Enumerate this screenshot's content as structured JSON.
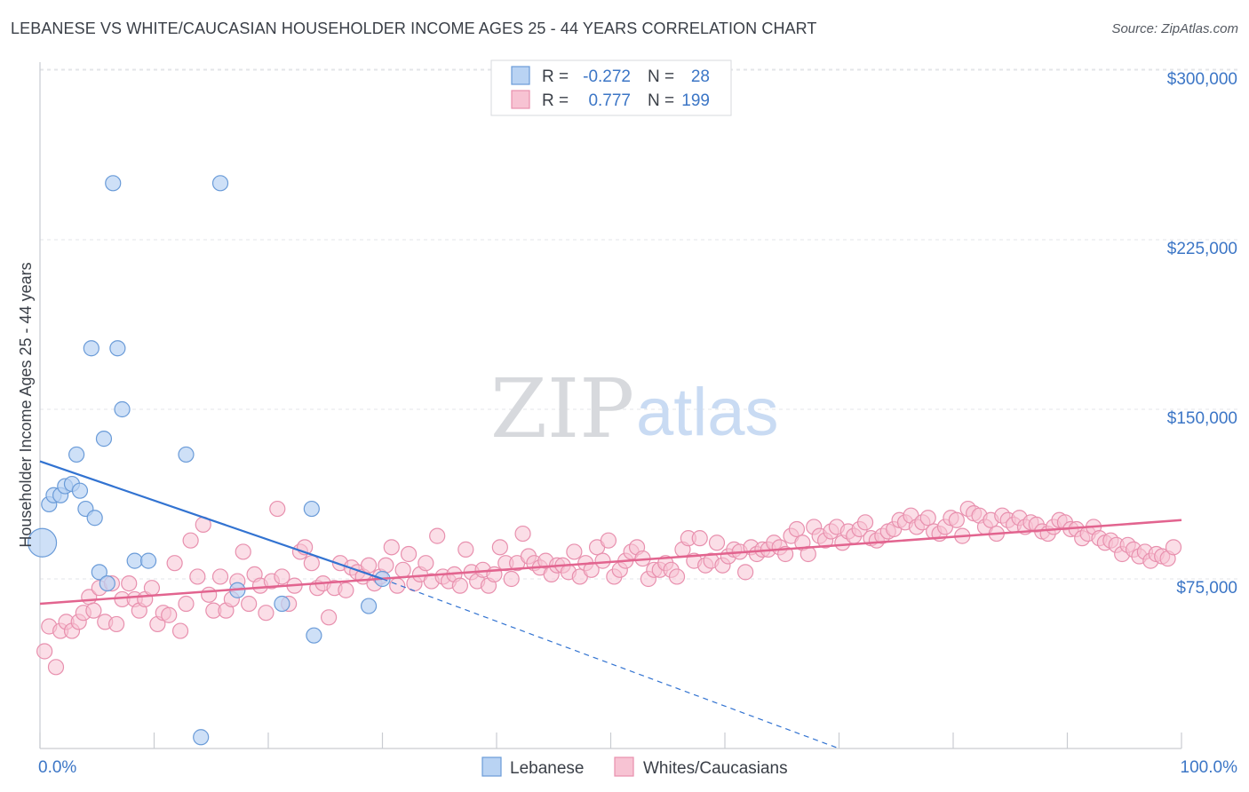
{
  "title": "LEBANESE VS WHITE/CAUCASIAN HOUSEHOLDER INCOME AGES 25 - 44 YEARS CORRELATION CHART",
  "source": "Source: ZipAtlas.com",
  "watermark": {
    "part1": "ZIP",
    "part2": "atlas"
  },
  "legend": {
    "row1": {
      "r_label": "R =",
      "r_value": "-0.272",
      "n_label": "N =",
      "n_value": "28"
    },
    "row2": {
      "r_label": "R =",
      "r_value": "0.777",
      "n_label": "N =",
      "n_value": "199"
    }
  },
  "bottom_legend": {
    "series1": "Lebanese",
    "series2": "Whites/Caucasians"
  },
  "colors": {
    "lebanese_fill": "#b9d3f3",
    "lebanese_stroke": "#6a9bd8",
    "lebanese_line": "#3273d1",
    "white_fill": "#f7c3d3",
    "white_stroke": "#e890ae",
    "white_line": "#e2648f",
    "tick_text": "#3c76c6",
    "grid": "#e3e5e8"
  },
  "chart_data": {
    "type": "scatter",
    "title": "LEBANESE VS WHITE/CAUCASIAN HOUSEHOLDER INCOME AGES 25 - 44 YEARS CORRELATION CHART",
    "xlabel": "",
    "ylabel": "Householder Income Ages 25 - 44 years",
    "xlim": [
      0,
      100
    ],
    "ylim": [
      0,
      300000
    ],
    "x_tick_labels": [
      "0.0%",
      "100.0%"
    ],
    "y_tick_labels": [
      "$75,000",
      "$150,000",
      "$225,000",
      "$300,000"
    ],
    "y_tick_values": [
      75000,
      150000,
      225000,
      300000
    ],
    "grid": true,
    "legend_position": "top-center",
    "series": [
      {
        "name": "Lebanese",
        "r": -0.272,
        "n": 28,
        "trend": {
          "x": [
            0,
            30
          ],
          "y": [
            127000,
            75000
          ]
        },
        "trend_extension": {
          "x": [
            30,
            70
          ],
          "y": [
            75000,
            0
          ]
        },
        "points": [
          [
            0.2,
            91000,
            14
          ],
          [
            0.8,
            108000,
            8
          ],
          [
            1.2,
            112000,
            8
          ],
          [
            1.8,
            112000,
            8
          ],
          [
            2.2,
            116000,
            8
          ],
          [
            2.8,
            117000,
            8
          ],
          [
            3.2,
            130000,
            8
          ],
          [
            3.5,
            114000,
            8
          ],
          [
            4.0,
            106000,
            8
          ],
          [
            4.5,
            177000,
            8
          ],
          [
            4.8,
            102000,
            8
          ],
          [
            5.2,
            78000,
            8
          ],
          [
            5.6,
            137000,
            8
          ],
          [
            5.9,
            73000,
            8
          ],
          [
            6.4,
            250000,
            8
          ],
          [
            6.8,
            177000,
            8
          ],
          [
            7.2,
            150000,
            8
          ],
          [
            8.3,
            83000,
            8
          ],
          [
            9.5,
            83000,
            8
          ],
          [
            12.8,
            130000,
            8
          ],
          [
            14.1,
            5000,
            8
          ],
          [
            15.8,
            250000,
            8
          ],
          [
            17.3,
            70000,
            8
          ],
          [
            21.2,
            64000,
            8
          ],
          [
            23.8,
            106000,
            8
          ],
          [
            24.0,
            50000,
            8
          ],
          [
            28.8,
            63000,
            8
          ],
          [
            30.0,
            75000,
            8
          ]
        ]
      },
      {
        "name": "Whites/Caucasians",
        "r": 0.777,
        "n": 199,
        "trend": {
          "x": [
            0,
            100
          ],
          "y": [
            64000,
            101000
          ]
        },
        "points": [
          [
            0.4,
            43000
          ],
          [
            0.8,
            54000
          ],
          [
            1.4,
            36000
          ],
          [
            1.8,
            52000
          ],
          [
            2.3,
            56000
          ],
          [
            2.8,
            52000
          ],
          [
            3.4,
            56000
          ],
          [
            3.8,
            60000
          ],
          [
            4.3,
            67000
          ],
          [
            4.7,
            61000
          ],
          [
            5.2,
            71000
          ],
          [
            5.7,
            56000
          ],
          [
            6.3,
            73000
          ],
          [
            6.7,
            55000
          ],
          [
            7.2,
            66000
          ],
          [
            7.8,
            73000
          ],
          [
            8.3,
            66000
          ],
          [
            8.7,
            61000
          ],
          [
            9.2,
            66000
          ],
          [
            9.8,
            71000
          ],
          [
            10.3,
            55000
          ],
          [
            10.8,
            60000
          ],
          [
            11.3,
            59000
          ],
          [
            11.8,
            82000
          ],
          [
            12.3,
            52000
          ],
          [
            12.8,
            64000
          ],
          [
            13.2,
            92000
          ],
          [
            13.8,
            76000
          ],
          [
            14.3,
            99000
          ],
          [
            14.8,
            68000
          ],
          [
            15.2,
            61000
          ],
          [
            15.8,
            76000
          ],
          [
            16.3,
            61000
          ],
          [
            16.8,
            66000
          ],
          [
            17.3,
            74000
          ],
          [
            17.8,
            87000
          ],
          [
            18.3,
            64000
          ],
          [
            18.8,
            77000
          ],
          [
            19.3,
            72000
          ],
          [
            19.8,
            60000
          ],
          [
            20.3,
            74000
          ],
          [
            20.8,
            106000
          ],
          [
            21.2,
            76000
          ],
          [
            21.8,
            64000
          ],
          [
            22.3,
            72000
          ],
          [
            22.8,
            87000
          ],
          [
            23.2,
            89000
          ],
          [
            23.8,
            82000
          ],
          [
            24.3,
            71000
          ],
          [
            24.8,
            73000
          ],
          [
            25.3,
            58000
          ],
          [
            25.8,
            71000
          ],
          [
            26.3,
            82000
          ],
          [
            26.8,
            70000
          ],
          [
            27.3,
            80000
          ],
          [
            27.8,
            78000
          ],
          [
            28.3,
            76000
          ],
          [
            28.8,
            81000
          ],
          [
            29.3,
            73000
          ],
          [
            29.8,
            76000
          ],
          [
            30.3,
            81000
          ],
          [
            30.8,
            89000
          ],
          [
            31.3,
            72000
          ],
          [
            31.8,
            79000
          ],
          [
            32.3,
            86000
          ],
          [
            32.8,
            73000
          ],
          [
            33.3,
            77000
          ],
          [
            33.8,
            82000
          ],
          [
            34.3,
            74000
          ],
          [
            34.8,
            94000
          ],
          [
            35.3,
            76000
          ],
          [
            35.8,
            74000
          ],
          [
            36.3,
            77000
          ],
          [
            36.8,
            72000
          ],
          [
            37.3,
            88000
          ],
          [
            37.8,
            78000
          ],
          [
            38.3,
            74000
          ],
          [
            38.8,
            79000
          ],
          [
            39.3,
            72000
          ],
          [
            39.8,
            77000
          ],
          [
            40.3,
            89000
          ],
          [
            40.8,
            82000
          ],
          [
            41.3,
            75000
          ],
          [
            41.8,
            82000
          ],
          [
            42.3,
            95000
          ],
          [
            42.8,
            85000
          ],
          [
            43.3,
            82000
          ],
          [
            43.8,
            80000
          ],
          [
            44.3,
            83000
          ],
          [
            44.8,
            77000
          ],
          [
            45.3,
            81000
          ],
          [
            45.8,
            81000
          ],
          [
            46.3,
            78000
          ],
          [
            46.8,
            87000
          ],
          [
            47.3,
            76000
          ],
          [
            47.8,
            82000
          ],
          [
            48.3,
            79000
          ],
          [
            48.8,
            89000
          ],
          [
            49.3,
            83000
          ],
          [
            49.8,
            92000
          ],
          [
            50.3,
            76000
          ],
          [
            50.8,
            79000
          ],
          [
            51.3,
            83000
          ],
          [
            51.8,
            87000
          ],
          [
            52.3,
            89000
          ],
          [
            52.8,
            84000
          ],
          [
            53.3,
            75000
          ],
          [
            53.8,
            79000
          ],
          [
            54.3,
            79000
          ],
          [
            54.8,
            82000
          ],
          [
            55.3,
            79000
          ],
          [
            55.8,
            76000
          ],
          [
            56.3,
            88000
          ],
          [
            56.8,
            93000
          ],
          [
            57.3,
            83000
          ],
          [
            57.8,
            93000
          ],
          [
            58.3,
            81000
          ],
          [
            58.8,
            83000
          ],
          [
            59.3,
            91000
          ],
          [
            59.8,
            81000
          ],
          [
            60.3,
            85000
          ],
          [
            60.8,
            88000
          ],
          [
            61.3,
            87000
          ],
          [
            61.8,
            78000
          ],
          [
            62.3,
            89000
          ],
          [
            62.8,
            86000
          ],
          [
            63.3,
            88000
          ],
          [
            63.8,
            88000
          ],
          [
            64.3,
            91000
          ],
          [
            64.8,
            89000
          ],
          [
            65.3,
            86000
          ],
          [
            65.8,
            94000
          ],
          [
            66.3,
            97000
          ],
          [
            66.8,
            91000
          ],
          [
            67.3,
            86000
          ],
          [
            67.8,
            98000
          ],
          [
            68.3,
            94000
          ],
          [
            68.8,
            92000
          ],
          [
            69.3,
            96000
          ],
          [
            69.8,
            98000
          ],
          [
            70.3,
            91000
          ],
          [
            70.8,
            96000
          ],
          [
            71.3,
            94000
          ],
          [
            71.8,
            97000
          ],
          [
            72.3,
            100000
          ],
          [
            72.8,
            93000
          ],
          [
            73.3,
            92000
          ],
          [
            73.8,
            94000
          ],
          [
            74.3,
            96000
          ],
          [
            74.8,
            97000
          ],
          [
            75.3,
            101000
          ],
          [
            75.8,
            100000
          ],
          [
            76.3,
            103000
          ],
          [
            76.8,
            98000
          ],
          [
            77.3,
            100000
          ],
          [
            77.8,
            102000
          ],
          [
            78.3,
            96000
          ],
          [
            78.8,
            95000
          ],
          [
            79.3,
            98000
          ],
          [
            79.8,
            102000
          ],
          [
            80.3,
            101000
          ],
          [
            80.8,
            94000
          ],
          [
            81.3,
            106000
          ],
          [
            81.8,
            104000
          ],
          [
            82.3,
            103000
          ],
          [
            82.8,
            98000
          ],
          [
            83.3,
            101000
          ],
          [
            83.8,
            95000
          ],
          [
            84.3,
            103000
          ],
          [
            84.8,
            101000
          ],
          [
            85.3,
            99000
          ],
          [
            85.8,
            102000
          ],
          [
            86.3,
            98000
          ],
          [
            86.8,
            100000
          ],
          [
            87.3,
            99000
          ],
          [
            87.8,
            96000
          ],
          [
            88.3,
            95000
          ],
          [
            88.8,
            98000
          ],
          [
            89.3,
            101000
          ],
          [
            89.8,
            100000
          ],
          [
            90.3,
            97000
          ],
          [
            90.8,
            97000
          ],
          [
            91.3,
            93000
          ],
          [
            91.8,
            95000
          ],
          [
            92.3,
            98000
          ],
          [
            92.8,
            93000
          ],
          [
            93.3,
            91000
          ],
          [
            93.8,
            92000
          ],
          [
            94.3,
            90000
          ],
          [
            94.8,
            86000
          ],
          [
            95.3,
            90000
          ],
          [
            95.8,
            88000
          ],
          [
            96.3,
            85000
          ],
          [
            96.8,
            87000
          ],
          [
            97.3,
            83000
          ],
          [
            97.8,
            86000
          ],
          [
            98.3,
            85000
          ],
          [
            98.8,
            84000
          ],
          [
            99.3,
            89000
          ]
        ]
      }
    ]
  }
}
